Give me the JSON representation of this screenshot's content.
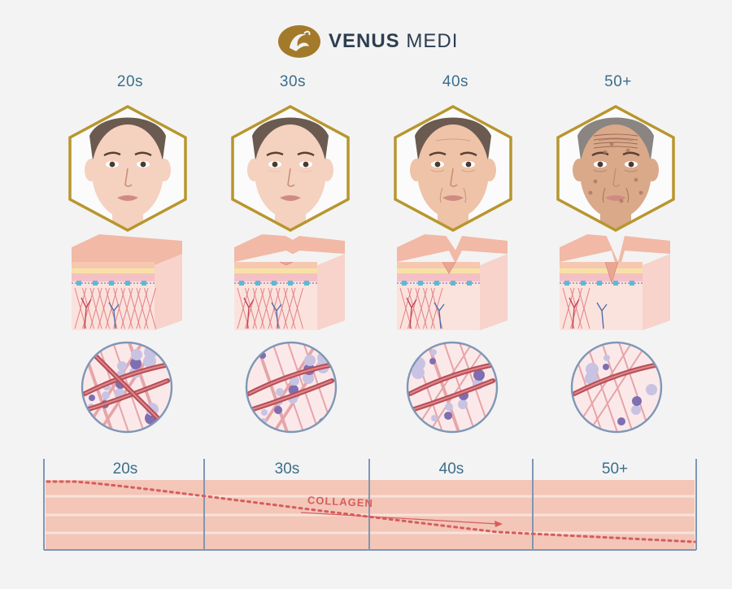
{
  "brand": {
    "name_bold": "VENUS",
    "name_light": "MEDI"
  },
  "stages": [
    {
      "label": "20s",
      "wrinkle": 0,
      "collagen": 1.0
    },
    {
      "label": "30s",
      "wrinkle": 0.15,
      "collagen": 0.8
    },
    {
      "label": "40s",
      "wrinkle": 0.55,
      "collagen": 0.5
    },
    {
      "label": "50+",
      "wrinkle": 1.0,
      "collagen": 0.25
    }
  ],
  "timeline": {
    "labels": [
      "20s",
      "30s",
      "40s",
      "50+"
    ],
    "collagen_label": "COLLAGEN"
  },
  "colors": {
    "gold": "#b8962e",
    "skin": "#f6d7c9",
    "collagen": "#d55d5d",
    "frame": "#7f97b5",
    "band": "#f3c6b8"
  }
}
